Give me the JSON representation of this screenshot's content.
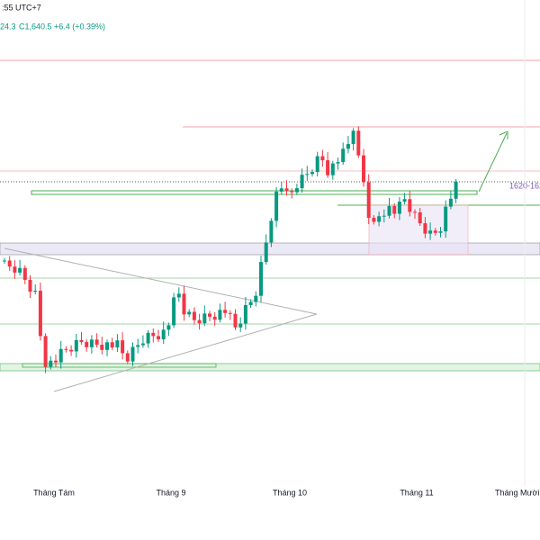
{
  "header": {
    "time": ":55 UTC+7",
    "low": "24.3",
    "close": "C1,640.5",
    "change": "+6.4 (+0.39%)"
  },
  "annotation": "1620-162",
  "time_axis": [
    "Tháng Tám",
    "Tháng 9",
    "Tháng 10",
    "Tháng 11",
    "Tháng Mười"
  ]
}
